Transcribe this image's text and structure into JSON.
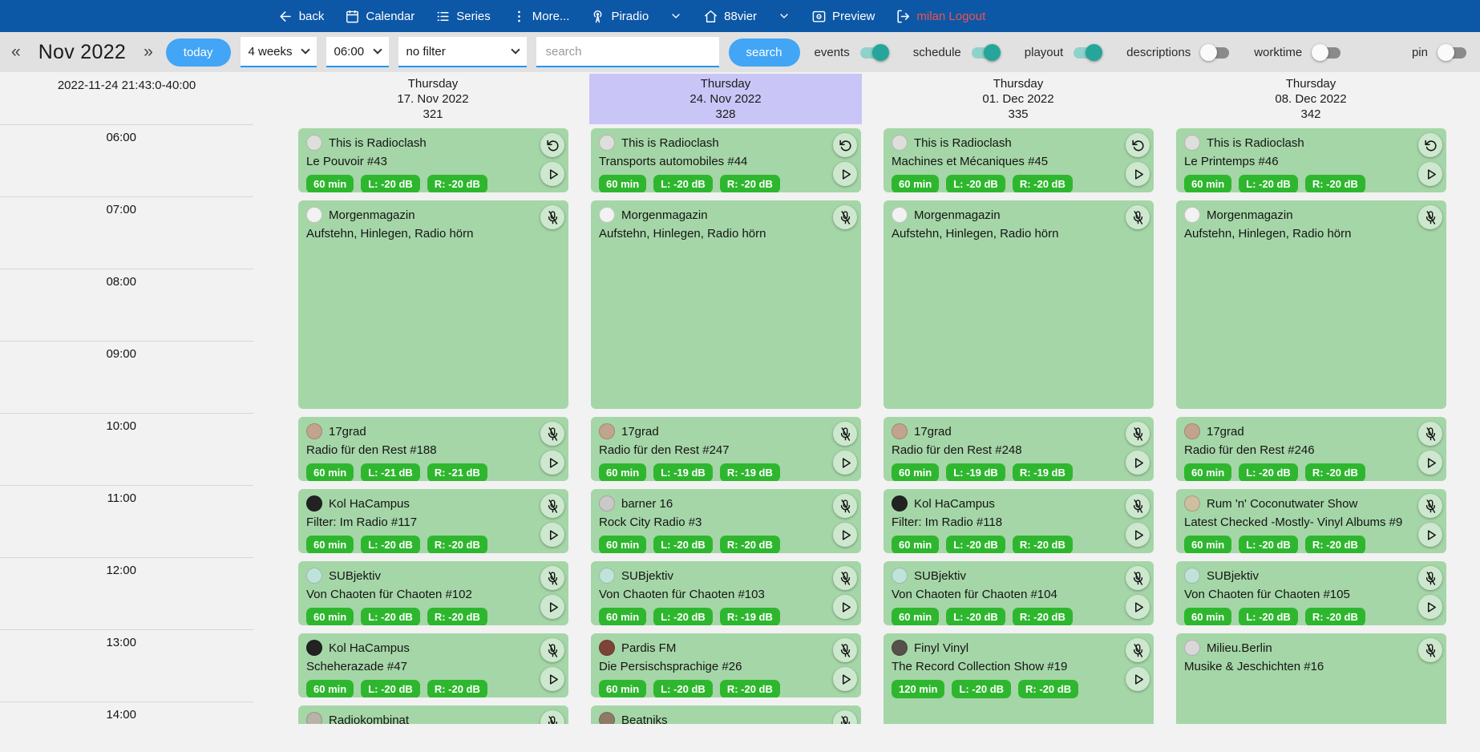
{
  "topbar": {
    "back": "back",
    "calendar": "Calendar",
    "series": "Series",
    "more": "More...",
    "station": "Piradio",
    "channel": "88vier",
    "preview": "Preview",
    "logout": "milan Logout"
  },
  "toolbar": {
    "prev": "«",
    "month_title": "Nov 2022",
    "next": "»",
    "today_button": "today",
    "range_select": "4 weeks",
    "time_select": "06:00",
    "filter_select": "no filter",
    "search_placeholder": "search",
    "search_button": "search",
    "toggles": [
      {
        "label": "events",
        "on": true
      },
      {
        "label": "schedule",
        "on": true
      },
      {
        "label": "playout",
        "on": true
      },
      {
        "label": "descriptions",
        "on": false
      },
      {
        "label": "worktime",
        "on": false
      },
      {
        "label": "pin",
        "on": false
      }
    ]
  },
  "calendar": {
    "timestamp": "2022-11-24 21:43:0-40:00",
    "times": [
      "06:00",
      "07:00",
      "08:00",
      "09:00",
      "10:00",
      "11:00",
      "12:00",
      "13:00",
      "14:00"
    ],
    "days": [
      {
        "weekday": "Thursday",
        "date": "17. Nov 2022",
        "daynum": "321",
        "today": false,
        "events": [
          {
            "show": "This is Radioclash",
            "episode": "Le Pouvoir #43",
            "badges": [
              "60 min",
              "L: -20 dB",
              "R: -20 dB"
            ],
            "icons": [
              "repeat",
              "play"
            ],
            "start": 6,
            "hours": 1,
            "avatar": "#dededa"
          },
          {
            "show": "Morgenmagazin",
            "episode": "Aufstehn, Hinlegen, Radio hörn",
            "badges": [],
            "icons": [
              "mic-off"
            ],
            "start": 7,
            "hours": 3,
            "avatar": "#f2f2f2"
          },
          {
            "show": "17grad",
            "episode": "Radio für den Rest #188",
            "badges": [
              "60 min",
              "L: -21 dB",
              "R: -21 dB"
            ],
            "icons": [
              "mic-off",
              "play"
            ],
            "start": 10,
            "hours": 1,
            "avatar": "#c2a48e"
          },
          {
            "show": "Kol HaCampus",
            "episode": "Filter: Im Radio #117",
            "badges": [
              "60 min",
              "L: -20 dB",
              "R: -20 dB"
            ],
            "icons": [
              "mic-off",
              "play"
            ],
            "start": 11,
            "hours": 1,
            "avatar": "#222222"
          },
          {
            "show": "SUBjektiv",
            "episode": "Von Chaoten für Chaoten #102",
            "badges": [
              "60 min",
              "L: -20 dB",
              "R: -20 dB"
            ],
            "icons": [
              "mic-off",
              "play"
            ],
            "start": 12,
            "hours": 1,
            "avatar": "#bfe3d8"
          },
          {
            "show": "Kol HaCampus",
            "episode": "Scheherazade #47",
            "badges": [
              "60 min",
              "L: -20 dB",
              "R: -20 dB"
            ],
            "icons": [
              "mic-off",
              "play"
            ],
            "start": 13,
            "hours": 1,
            "avatar": "#222222"
          },
          {
            "show": "Radiokombinat",
            "episode": "",
            "badges": [],
            "icons": [
              "mic-off"
            ],
            "start": 14,
            "hours": 1,
            "avatar": "#b9b2a6"
          }
        ]
      },
      {
        "weekday": "Thursday",
        "date": "24. Nov 2022",
        "daynum": "328",
        "today": true,
        "events": [
          {
            "show": "This is Radioclash",
            "episode": "Transports automobiles #44",
            "badges": [
              "60 min",
              "L: -20 dB",
              "R: -20 dB"
            ],
            "icons": [
              "repeat",
              "play"
            ],
            "start": 6,
            "hours": 1,
            "avatar": "#dededa"
          },
          {
            "show": "Morgenmagazin",
            "episode": "Aufstehn, Hinlegen, Radio hörn",
            "badges": [],
            "icons": [
              "mic-off"
            ],
            "start": 7,
            "hours": 3,
            "avatar": "#f2f2f2"
          },
          {
            "show": "17grad",
            "episode": "Radio für den Rest #247",
            "badges": [
              "60 min",
              "L: -19 dB",
              "R: -19 dB"
            ],
            "icons": [
              "mic-off",
              "play"
            ],
            "start": 10,
            "hours": 1,
            "avatar": "#c2a48e"
          },
          {
            "show": "barner 16",
            "episode": "Rock City Radio #3",
            "badges": [
              "60 min",
              "L: -20 dB",
              "R: -20 dB"
            ],
            "icons": [
              "mic-off",
              "play"
            ],
            "start": 11,
            "hours": 1,
            "avatar": "#c9c9c9"
          },
          {
            "show": "SUBjektiv",
            "episode": "Von Chaoten für Chaoten #103",
            "badges": [
              "60 min",
              "L: -20 dB",
              "R: -19 dB"
            ],
            "icons": [
              "mic-off",
              "play"
            ],
            "start": 12,
            "hours": 1,
            "avatar": "#bfe3d8"
          },
          {
            "show": "Pardis FM",
            "episode": "Die Persischsprachige #26",
            "badges": [
              "60 min",
              "L: -20 dB",
              "R: -20 dB"
            ],
            "icons": [
              "mic-off",
              "play"
            ],
            "start": 13,
            "hours": 1,
            "avatar": "#7e4338"
          },
          {
            "show": "Beatniks",
            "episode": "",
            "badges": [],
            "icons": [
              "mic-off"
            ],
            "start": 14,
            "hours": 1,
            "avatar": "#8d7b68"
          }
        ]
      },
      {
        "weekday": "Thursday",
        "date": "01. Dec 2022",
        "daynum": "335",
        "today": false,
        "events": [
          {
            "show": "This is Radioclash",
            "episode": "Machines et Mécaniques #45",
            "badges": [
              "60 min",
              "L: -20 dB",
              "R: -20 dB"
            ],
            "icons": [
              "repeat",
              "play"
            ],
            "start": 6,
            "hours": 1,
            "avatar": "#dededa"
          },
          {
            "show": "Morgenmagazin",
            "episode": "Aufstehn, Hinlegen, Radio hörn",
            "badges": [],
            "icons": [
              "mic-off"
            ],
            "start": 7,
            "hours": 3,
            "avatar": "#f2f2f2"
          },
          {
            "show": "17grad",
            "episode": "Radio für den Rest #248",
            "badges": [
              "60 min",
              "L: -19 dB",
              "R: -19 dB"
            ],
            "icons": [
              "mic-off",
              "play"
            ],
            "start": 10,
            "hours": 1,
            "avatar": "#c2a48e"
          },
          {
            "show": "Kol HaCampus",
            "episode": "Filter: Im Radio #118",
            "badges": [
              "60 min",
              "L: -20 dB",
              "R: -20 dB"
            ],
            "icons": [
              "mic-off",
              "play"
            ],
            "start": 11,
            "hours": 1,
            "avatar": "#222222"
          },
          {
            "show": "SUBjektiv",
            "episode": "Von Chaoten für Chaoten #104",
            "badges": [
              "60 min",
              "L: -20 dB",
              "R: -20 dB"
            ],
            "icons": [
              "mic-off",
              "play"
            ],
            "start": 12,
            "hours": 1,
            "avatar": "#bfe3d8"
          },
          {
            "show": "Finyl Vinyl",
            "episode": "The Record Collection Show #19",
            "badges": [
              "120 min",
              "L: -20 dB",
              "R: -20 dB"
            ],
            "icons": [
              "mic-off",
              "play"
            ],
            "start": 13,
            "hours": 2,
            "avatar": "#555049"
          }
        ]
      },
      {
        "weekday": "Thursday",
        "date": "08. Dec 2022",
        "daynum": "342",
        "today": false,
        "events": [
          {
            "show": "This is Radioclash",
            "episode": "Le Printemps #46",
            "badges": [
              "60 min",
              "L: -20 dB",
              "R: -20 dB"
            ],
            "icons": [
              "repeat",
              "play"
            ],
            "start": 6,
            "hours": 1,
            "avatar": "#dededa"
          },
          {
            "show": "Morgenmagazin",
            "episode": "Aufstehn, Hinlegen, Radio hörn",
            "badges": [],
            "icons": [
              "mic-off"
            ],
            "start": 7,
            "hours": 3,
            "avatar": "#f2f2f2"
          },
          {
            "show": "17grad",
            "episode": "Radio für den Rest #246",
            "badges": [
              "60 min",
              "L: -20 dB",
              "R: -20 dB"
            ],
            "icons": [
              "mic-off",
              "play"
            ],
            "start": 10,
            "hours": 1,
            "avatar": "#c2a48e"
          },
          {
            "show": "Rum 'n' Coconutwater Show",
            "episode": "Latest Checked -Mostly- Vinyl Albums #9",
            "badges": [
              "60 min",
              "L: -20 dB",
              "R: -20 dB"
            ],
            "icons": [
              "mic-off",
              "play"
            ],
            "start": 11,
            "hours": 1,
            "avatar": "#cdbfa0"
          },
          {
            "show": "SUBjektiv",
            "episode": "Von Chaoten für Chaoten #105",
            "badges": [
              "60 min",
              "L: -20 dB",
              "R: -20 dB"
            ],
            "icons": [
              "mic-off",
              "play"
            ],
            "start": 12,
            "hours": 1,
            "avatar": "#bfe3d8"
          },
          {
            "show": "Milieu.Berlin",
            "episode": "Musike & Jeschichten #16",
            "badges": [],
            "icons": [
              "mic-off"
            ],
            "start": 13,
            "hours": 2,
            "avatar": "#d8d8d8"
          }
        ]
      }
    ]
  },
  "colors": {
    "topbar": "#0d57a7",
    "accent_button": "#42a5f5",
    "select_underline": "#2196f3",
    "toggle_on": "#26a69a",
    "logout_text": "#ef5350",
    "event_card": "#a5d6a7",
    "badge": "#2eb72e",
    "today_header": "#c9c6f7"
  }
}
